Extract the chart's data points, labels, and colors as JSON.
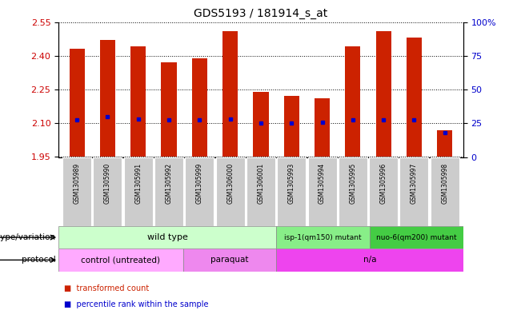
{
  "title": "GDS5193 / 181914_s_at",
  "samples": [
    "GSM1305989",
    "GSM1305990",
    "GSM1305991",
    "GSM1305992",
    "GSM1305999",
    "GSM1306000",
    "GSM1306001",
    "GSM1305993",
    "GSM1305994",
    "GSM1305995",
    "GSM1305996",
    "GSM1305997",
    "GSM1305998"
  ],
  "bar_bottoms": [
    1.95,
    1.95,
    1.95,
    1.95,
    1.95,
    1.95,
    1.95,
    1.95,
    1.95,
    1.95,
    1.95,
    1.95,
    1.95
  ],
  "bar_tops": [
    2.43,
    2.47,
    2.44,
    2.37,
    2.39,
    2.51,
    2.24,
    2.22,
    2.21,
    2.44,
    2.51,
    2.48,
    2.07
  ],
  "blue_marks": [
    2.115,
    2.13,
    2.12,
    2.115,
    2.115,
    2.12,
    2.1,
    2.1,
    2.105,
    2.115,
    2.115,
    2.115,
    2.06
  ],
  "ylim_left": [
    1.95,
    2.55
  ],
  "yticks_left": [
    1.95,
    2.1,
    2.25,
    2.4,
    2.55
  ],
  "yticks_right": [
    0,
    25,
    50,
    75,
    100
  ],
  "ylabel_left_color": "#cc0000",
  "ylabel_right_color": "#0000cc",
  "bar_color": "#cc2200",
  "blue_color": "#0000cc",
  "grid_color": "#000000",
  "genotype_groups": [
    {
      "label": "wild type",
      "start": 0,
      "end": 7,
      "color": "#ccffcc"
    },
    {
      "label": "isp-1(qm150) mutant",
      "start": 7,
      "end": 10,
      "color": "#88ee88"
    },
    {
      "label": "nuo-6(qm200) mutant",
      "start": 10,
      "end": 13,
      "color": "#44cc44"
    }
  ],
  "protocol_groups": [
    {
      "label": "control (untreated)",
      "start": 0,
      "end": 4,
      "color": "#ffaaff"
    },
    {
      "label": "paraquat",
      "start": 4,
      "end": 7,
      "color": "#ee88ee"
    },
    {
      "label": "n/a",
      "start": 7,
      "end": 13,
      "color": "#ee44ee"
    }
  ],
  "legend_items": [
    {
      "color": "#cc2200",
      "label": "transformed count"
    },
    {
      "color": "#0000cc",
      "label": "percentile rank within the sample"
    }
  ],
  "row_label_genotype": "genotype/variation",
  "row_label_protocol": "protocol",
  "tick_bg_color": "#cccccc",
  "bar_width": 0.5
}
